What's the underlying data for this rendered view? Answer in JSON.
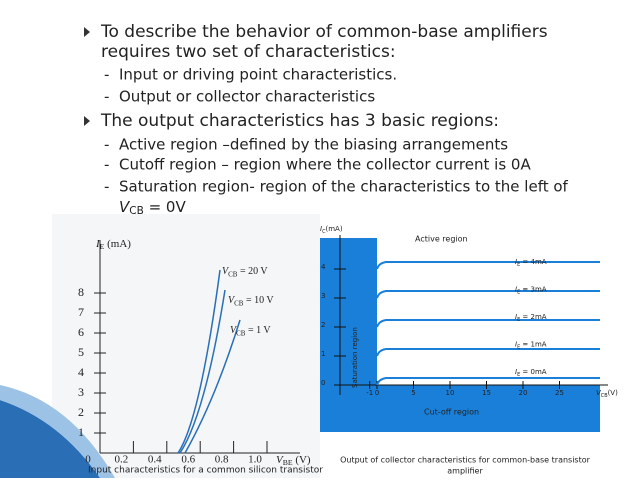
{
  "bullets": [
    {
      "text": "To describe the behavior of common-base amplifiers",
      "text2": "requires two set of characteristics:",
      "subs": [
        "Input or driving point characteristics.",
        "Output or collector characteristics"
      ]
    },
    {
      "text": "The output characteristics has 3 basic regions:",
      "subs": [
        "Active region –defined by the biasing arrangements",
        "Cutoff region – region where the collector current is 0A",
        "Saturation region- region of the characteristics to the left of"
      ],
      "last_sub": {
        "main": "V",
        "sub": "CB",
        "rest": " = 0V"
      }
    }
  ],
  "input_figure": {
    "y_label": {
      "main": "I",
      "sub": "E",
      "rest": " (mA)"
    },
    "x_label": {
      "main": "V",
      "sub": "BE",
      "rest": " (V)"
    },
    "yticks": [
      1,
      2,
      3,
      4,
      5,
      6,
      7,
      8
    ],
    "xticks": [
      0,
      0.2,
      0.4,
      0.6,
      0.8,
      {
        "value": 1,
        "label": "1.0"
      }
    ],
    "curves": [
      {
        "main": "V",
        "sub": "CB",
        "rest": " = 20 V"
      },
      {
        "main": "V",
        "sub": "CB",
        "rest": " = 10 V"
      },
      {
        "main": "V",
        "sub": "CB",
        "rest": " = 1 V"
      }
    ],
    "caption": "Input characteristics for a common silicon transistor"
  },
  "output_figure": {
    "y_label": {
      "main": "I",
      "sub": "C",
      "rest": "(mA)"
    },
    "x_label": {
      "main": "V",
      "sub": "CB",
      "rest": "(V)"
    },
    "yticks": [
      0,
      1,
      2,
      3,
      4
    ],
    "xticks": [
      -1,
      0,
      5,
      10,
      15,
      20,
      25
    ],
    "currents": [
      {
        "main": "I",
        "sub": "E",
        "rest": " = 4mA"
      },
      {
        "main": "I",
        "sub": "E",
        "rest": " = 3mA"
      },
      {
        "main": "I",
        "sub": "E",
        "rest": " = 2mA"
      },
      {
        "main": "I",
        "sub": "E",
        "rest": " = 1mA"
      },
      {
        "main": "I",
        "sub": "E",
        "rest": " = 0mA"
      }
    ],
    "active": "Active region",
    "cutoff": "Cut-off region",
    "saturation": "Saturation region",
    "caption": [
      "Output of collector characteristics for common-base transistor",
      "amplifier"
    ]
  }
}
